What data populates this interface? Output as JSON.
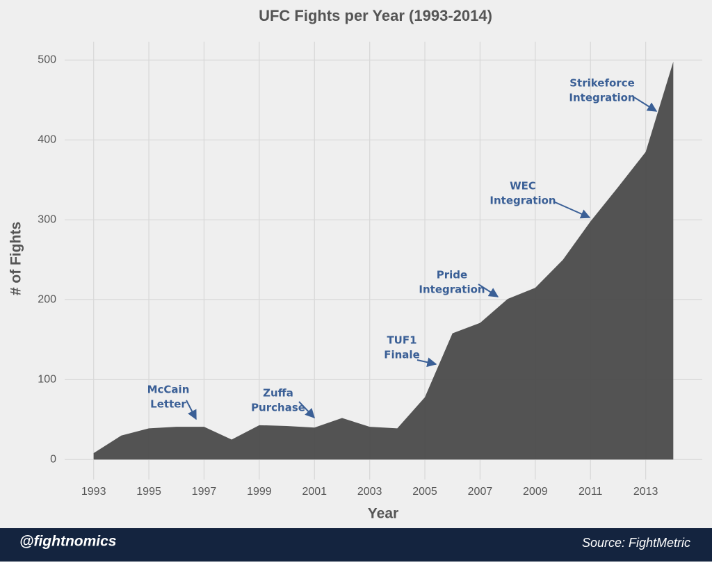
{
  "chart_data": {
    "type": "area",
    "title": "UFC Fights per Year (1993-2014)",
    "x_label": "Year",
    "y_label": "# of Fights",
    "x": [
      1993,
      1994,
      1995,
      1996,
      1997,
      1998,
      1999,
      2000,
      2001,
      2002,
      2003,
      2004,
      2005,
      2006,
      2007,
      2008,
      2009,
      2010,
      2011,
      2012,
      2013,
      2014
    ],
    "values": [
      8,
      30,
      39,
      41,
      41,
      25,
      43,
      42,
      40,
      52,
      41,
      39,
      78,
      158,
      171,
      201,
      215,
      250,
      298,
      341,
      385,
      498
    ],
    "color": "#4d4d4d",
    "xlim": [
      1991.95,
      2015.05
    ],
    "ylim": [
      -25,
      523
    ],
    "xticks": [
      1993,
      1995,
      1997,
      1999,
      2001,
      2003,
      2005,
      2007,
      2009,
      2011,
      2013
    ],
    "yticks": [
      0,
      100,
      200,
      300,
      400,
      500
    ],
    "grid": true,
    "annotations": [
      {
        "lines": [
          "McCain",
          "Letter"
        ]
      },
      {
        "lines": [
          "Zuffa",
          "Purchase"
        ]
      },
      {
        "lines": [
          "TUF1",
          "Finale"
        ]
      },
      {
        "lines": [
          "Pride",
          "Integration"
        ]
      },
      {
        "lines": [
          "WEC",
          "Integration"
        ]
      },
      {
        "lines": [
          "Strikeforce",
          "Integration"
        ]
      }
    ]
  },
  "footer": {
    "handle": "@fightnomics",
    "source": "Source: FightMetric"
  }
}
